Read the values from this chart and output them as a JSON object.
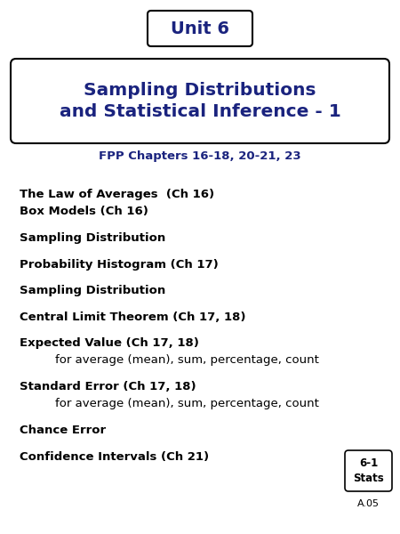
{
  "bg_color": "#ffffff",
  "unit_label": "Unit 6",
  "unit_text_color": "#1a237e",
  "title_line1": "Sampling Distributions",
  "title_line2": "and Statistical Inference - 1",
  "title_color": "#1a237e",
  "subtitle": "FPP Chapters 16-18, 20-21, 23",
  "subtitle_color": "#1a237e",
  "items": [
    {
      "text": "The Law of Averages  (Ch 16)",
      "bold": true,
      "sub": false
    },
    {
      "text": "Box Models (Ch 16)",
      "bold": true,
      "sub": false
    },
    {
      "text": "",
      "bold": false,
      "sub": false
    },
    {
      "text": "Sampling Distribution",
      "bold": true,
      "sub": false
    },
    {
      "text": "",
      "bold": false,
      "sub": false
    },
    {
      "text": "Probability Histogram (Ch 17)",
      "bold": true,
      "sub": false
    },
    {
      "text": "",
      "bold": false,
      "sub": false
    },
    {
      "text": "Sampling Distribution",
      "bold": true,
      "sub": false
    },
    {
      "text": "",
      "bold": false,
      "sub": false
    },
    {
      "text": "Central Limit Theorem (Ch 17, 18)",
      "bold": true,
      "sub": false
    },
    {
      "text": "",
      "bold": false,
      "sub": false
    },
    {
      "text": "Expected Value (Ch 17, 18)",
      "bold": true,
      "sub": false
    },
    {
      "text": "    for average (mean), sum, percentage, count",
      "bold": false,
      "sub": true
    },
    {
      "text": "",
      "bold": false,
      "sub": false
    },
    {
      "text": "Standard Error (Ch 17, 18)",
      "bold": true,
      "sub": false
    },
    {
      "text": "    for average (mean), sum, percentage, count",
      "bold": false,
      "sub": true
    },
    {
      "text": "",
      "bold": false,
      "sub": false
    },
    {
      "text": "Chance Error",
      "bold": true,
      "sub": false
    },
    {
      "text": "",
      "bold": false,
      "sub": false
    },
    {
      "text": "Confidence Intervals (Ch 21)",
      "bold": true,
      "sub": false
    }
  ],
  "text_color": "#000000",
  "badge_text1": "6-1",
  "badge_text2": "Stats",
  "badge_sub": "A.05"
}
